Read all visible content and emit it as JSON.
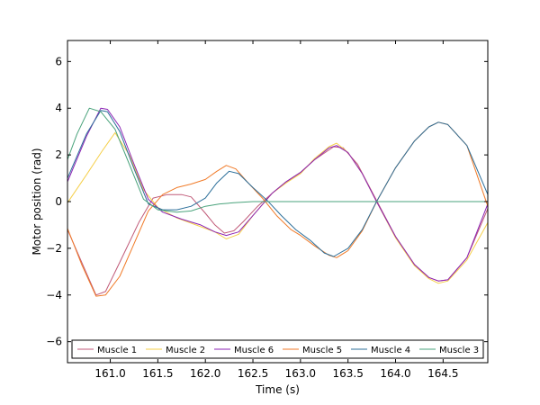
{
  "chart_data": {
    "type": "line",
    "xlabel": "Time (s)",
    "ylabel": "Motor position (rad)",
    "xlim": [
      160.55,
      164.97
    ],
    "ylim": [
      -6.9,
      6.9
    ],
    "xticks": [
      161.0,
      161.5,
      162.0,
      162.5,
      163.0,
      163.5,
      164.0,
      164.5
    ],
    "yticks": [
      -6,
      -4,
      -2,
      0,
      2,
      4,
      6
    ],
    "x_tick_labels": [
      "161.0",
      "161.5",
      "162.0",
      "162.5",
      "163.0",
      "163.5",
      "164.0",
      "164.5"
    ],
    "y_tick_labels": [
      "−6",
      "−4",
      "−2",
      "0",
      "2",
      "4",
      "6"
    ],
    "grid": false,
    "legend_position": "bottom",
    "series": [
      {
        "name": "Muscle 1",
        "color": "#c05a78",
        "points": [
          [
            160.55,
            -1.2
          ],
          [
            160.7,
            -2.6
          ],
          [
            160.85,
            -4.0
          ],
          [
            160.95,
            -3.85
          ],
          [
            161.1,
            -2.6
          ],
          [
            161.3,
            -0.9
          ],
          [
            161.45,
            0.15
          ],
          [
            161.6,
            0.3
          ],
          [
            161.75,
            0.3
          ],
          [
            161.85,
            0.2
          ],
          [
            162.0,
            -0.5
          ],
          [
            162.1,
            -1.0
          ],
          [
            162.2,
            -1.35
          ],
          [
            162.3,
            -1.25
          ],
          [
            162.4,
            -0.85
          ],
          [
            162.55,
            -0.2
          ],
          [
            162.7,
            0.35
          ],
          [
            162.85,
            0.85
          ],
          [
            163.0,
            1.25
          ],
          [
            163.15,
            1.8
          ],
          [
            163.35,
            2.35
          ],
          [
            163.45,
            2.3
          ],
          [
            163.6,
            1.6
          ],
          [
            163.8,
            0.05
          ],
          [
            164.0,
            -1.5
          ],
          [
            164.2,
            -2.7
          ],
          [
            164.35,
            -3.25
          ],
          [
            164.45,
            -3.4
          ],
          [
            164.55,
            -3.35
          ],
          [
            164.75,
            -2.4
          ],
          [
            164.97,
            -0.3
          ]
        ]
      },
      {
        "name": "Muscle 2",
        "color": "#f5cf4a",
        "points": [
          [
            160.55,
            -0.05
          ],
          [
            160.75,
            1.15
          ],
          [
            160.92,
            2.2
          ],
          [
            161.05,
            2.95
          ],
          [
            161.2,
            2.0
          ],
          [
            161.35,
            0.5
          ],
          [
            161.5,
            -0.25
          ],
          [
            161.7,
            -0.7
          ],
          [
            161.9,
            -1.0
          ],
          [
            162.1,
            -1.3
          ],
          [
            162.22,
            -1.6
          ],
          [
            162.35,
            -1.4
          ],
          [
            162.5,
            -0.6
          ],
          [
            162.7,
            0.35
          ],
          [
            162.85,
            0.8
          ],
          [
            163.0,
            1.2
          ],
          [
            163.15,
            1.85
          ],
          [
            163.3,
            2.35
          ],
          [
            163.38,
            2.5
          ],
          [
            163.5,
            2.1
          ],
          [
            163.65,
            1.2
          ],
          [
            163.8,
            0.0
          ],
          [
            164.0,
            -1.55
          ],
          [
            164.2,
            -2.75
          ],
          [
            164.35,
            -3.3
          ],
          [
            164.45,
            -3.5
          ],
          [
            164.55,
            -3.4
          ],
          [
            164.75,
            -2.5
          ],
          [
            164.97,
            -0.9
          ]
        ]
      },
      {
        "name": "Muscle 6",
        "color": "#8b22b4",
        "points": [
          [
            160.55,
            0.85
          ],
          [
            160.75,
            2.8
          ],
          [
            160.9,
            4.0
          ],
          [
            160.97,
            3.95
          ],
          [
            161.1,
            3.2
          ],
          [
            161.25,
            1.6
          ],
          [
            161.4,
            0.1
          ],
          [
            161.55,
            -0.45
          ],
          [
            161.75,
            -0.75
          ],
          [
            161.95,
            -1.0
          ],
          [
            162.1,
            -1.3
          ],
          [
            162.22,
            -1.45
          ],
          [
            162.35,
            -1.3
          ],
          [
            162.5,
            -0.6
          ],
          [
            162.7,
            0.35
          ],
          [
            162.85,
            0.85
          ],
          [
            163.0,
            1.25
          ],
          [
            163.15,
            1.8
          ],
          [
            163.3,
            2.3
          ],
          [
            163.38,
            2.4
          ],
          [
            163.5,
            2.1
          ],
          [
            163.65,
            1.2
          ],
          [
            163.8,
            0.0
          ],
          [
            164.0,
            -1.5
          ],
          [
            164.2,
            -2.7
          ],
          [
            164.35,
            -3.25
          ],
          [
            164.45,
            -3.4
          ],
          [
            164.55,
            -3.35
          ],
          [
            164.75,
            -2.4
          ],
          [
            164.97,
            -0.1
          ]
        ]
      },
      {
        "name": "Muscle 5",
        "color": "#f07a28",
        "points": [
          [
            160.55,
            -1.15
          ],
          [
            160.7,
            -2.7
          ],
          [
            160.85,
            -4.05
          ],
          [
            160.95,
            -4.0
          ],
          [
            161.1,
            -3.2
          ],
          [
            161.25,
            -1.8
          ],
          [
            161.4,
            -0.4
          ],
          [
            161.55,
            0.3
          ],
          [
            161.7,
            0.6
          ],
          [
            161.85,
            0.75
          ],
          [
            162.0,
            0.95
          ],
          [
            162.12,
            1.3
          ],
          [
            162.22,
            1.55
          ],
          [
            162.32,
            1.4
          ],
          [
            162.45,
            0.8
          ],
          [
            162.6,
            0.15
          ],
          [
            162.75,
            -0.6
          ],
          [
            162.9,
            -1.2
          ],
          [
            163.0,
            -1.45
          ],
          [
            163.15,
            -1.9
          ],
          [
            163.3,
            -2.3
          ],
          [
            163.38,
            -2.4
          ],
          [
            163.5,
            -2.1
          ],
          [
            163.65,
            -1.25
          ],
          [
            163.8,
            0.0
          ],
          [
            164.0,
            1.45
          ],
          [
            164.2,
            2.6
          ],
          [
            164.35,
            3.2
          ],
          [
            164.45,
            3.4
          ],
          [
            164.55,
            3.3
          ],
          [
            164.75,
            2.4
          ],
          [
            164.97,
            -0.2
          ]
        ]
      },
      {
        "name": "Muscle 4",
        "color": "#2c6f9a",
        "points": [
          [
            160.55,
            1.0
          ],
          [
            160.75,
            2.9
          ],
          [
            160.9,
            3.9
          ],
          [
            160.97,
            3.85
          ],
          [
            161.1,
            3.0
          ],
          [
            161.25,
            1.4
          ],
          [
            161.4,
            -0.1
          ],
          [
            161.55,
            -0.35
          ],
          [
            161.7,
            -0.35
          ],
          [
            161.85,
            -0.2
          ],
          [
            162.0,
            0.15
          ],
          [
            162.12,
            0.8
          ],
          [
            162.25,
            1.3
          ],
          [
            162.35,
            1.2
          ],
          [
            162.5,
            0.6
          ],
          [
            162.65,
            0.05
          ],
          [
            162.8,
            -0.6
          ],
          [
            162.95,
            -1.2
          ],
          [
            163.1,
            -1.65
          ],
          [
            163.25,
            -2.2
          ],
          [
            163.35,
            -2.35
          ],
          [
            163.5,
            -2.0
          ],
          [
            163.65,
            -1.2
          ],
          [
            163.8,
            0.0
          ],
          [
            164.0,
            1.45
          ],
          [
            164.2,
            2.6
          ],
          [
            164.35,
            3.2
          ],
          [
            164.45,
            3.4
          ],
          [
            164.55,
            3.3
          ],
          [
            164.75,
            2.4
          ],
          [
            164.97,
            0.3
          ]
        ]
      },
      {
        "name": "Muscle 3",
        "color": "#4aa37c",
        "points": [
          [
            160.55,
            1.8
          ],
          [
            160.65,
            2.9
          ],
          [
            160.78,
            4.0
          ],
          [
            160.9,
            3.85
          ],
          [
            161.05,
            3.1
          ],
          [
            161.2,
            1.6
          ],
          [
            161.35,
            0.1
          ],
          [
            161.5,
            -0.35
          ],
          [
            161.7,
            -0.45
          ],
          [
            161.85,
            -0.4
          ],
          [
            162.0,
            -0.2
          ],
          [
            162.15,
            -0.1
          ],
          [
            162.3,
            -0.05
          ],
          [
            162.5,
            0.0
          ],
          [
            164.97,
            0.0
          ]
        ]
      }
    ]
  }
}
